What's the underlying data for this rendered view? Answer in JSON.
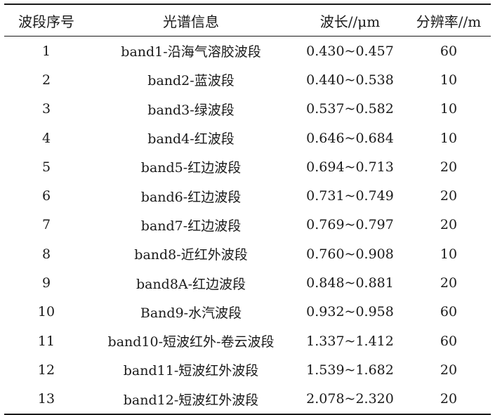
{
  "table": {
    "headers": [
      "波段序号",
      "光谱信息",
      "波长//μm",
      "分辨率//m"
    ],
    "rows": [
      [
        "1",
        "band1-沿海气溶胶波段",
        "0.430~0.457",
        "60"
      ],
      [
        "2",
        "band2-蓝波段",
        "0.440~0.538",
        "10"
      ],
      [
        "3",
        "band3-绿波段",
        "0.537~0.582",
        "10"
      ],
      [
        "4",
        "band4-红波段",
        "0.646~0.684",
        "10"
      ],
      [
        "5",
        "band5-红边波段",
        "0.694~0.713",
        "20"
      ],
      [
        "6",
        "band6-红边波段",
        "0.731~0.749",
        "20"
      ],
      [
        "7",
        "band7-红边波段",
        "0.769~0.797",
        "20"
      ],
      [
        "8",
        "band8-近红外波段",
        "0.760~0.908",
        "10"
      ],
      [
        "9",
        "band8A-红边波段",
        "0.848~0.881",
        "20"
      ],
      [
        "10",
        "Band9-水汽波段",
        "0.932~0.958",
        "60"
      ],
      [
        "11",
        "band10-短波红外-卷云波段",
        "1.337~1.412",
        "60"
      ],
      [
        "12",
        "band11-短波红外波段",
        "1.539~1.682",
        "20"
      ],
      [
        "13",
        "band12-短波红外波段",
        "2.078~2.320",
        "20"
      ]
    ]
  }
}
